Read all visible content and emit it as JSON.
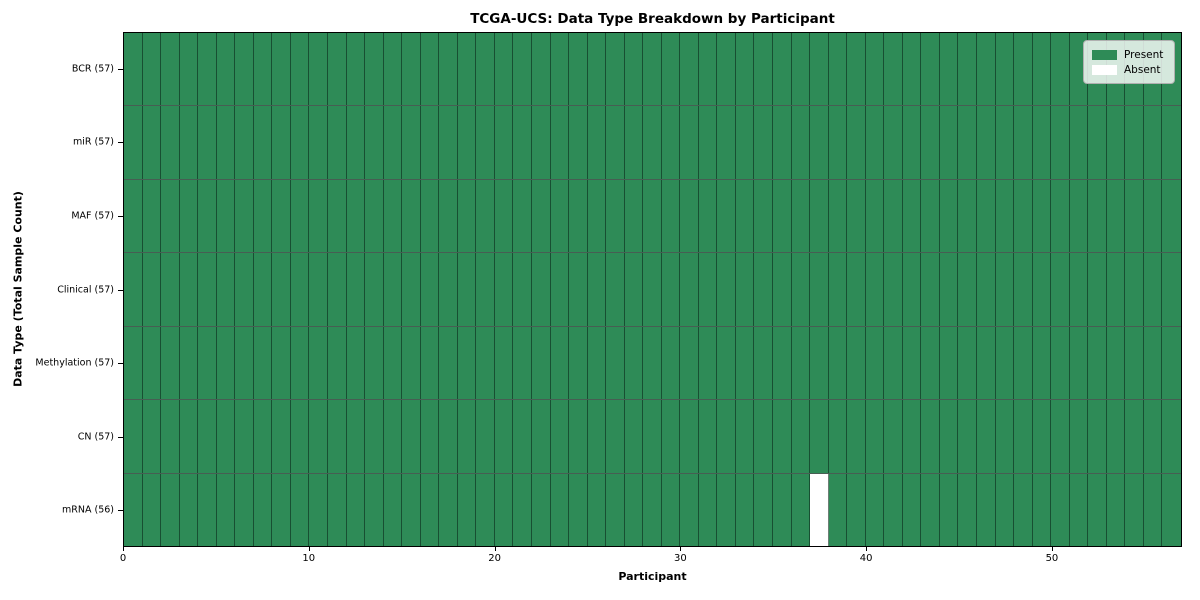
{
  "chart_data": {
    "type": "heatmap",
    "title": "TCGA-UCS: Data Type Breakdown by Participant",
    "xlabel": "Participant",
    "ylabel": "Data Type (Total Sample Count)",
    "n_participants": 57,
    "xlim": [
      0,
      57
    ],
    "x_ticks": [
      0,
      10,
      20,
      30,
      40,
      50
    ],
    "rows": [
      {
        "label": "BCR",
        "count": 57,
        "display": "BCR (57)",
        "absent_participants": []
      },
      {
        "label": "miR",
        "count": 57,
        "display": "miR (57)",
        "absent_participants": []
      },
      {
        "label": "MAF",
        "count": 57,
        "display": "MAF (57)",
        "absent_participants": []
      },
      {
        "label": "Clinical",
        "count": 57,
        "display": "Clinical (57)",
        "absent_participants": []
      },
      {
        "label": "Methylation",
        "count": 57,
        "display": "Methylation (57)",
        "absent_participants": []
      },
      {
        "label": "CN",
        "count": 57,
        "display": "CN (57)",
        "absent_participants": []
      },
      {
        "label": "mRNA",
        "count": 56,
        "display": "mRNA (56)",
        "absent_participants": [
          37
        ]
      }
    ],
    "legend": [
      {
        "label": "Present",
        "color": "#2e8b57"
      },
      {
        "label": "Absent",
        "color": "#ffffff"
      }
    ],
    "legend_position": "upper right",
    "colors": {
      "present": "#2e8b57",
      "absent": "#ffffff",
      "cell_edge": "#1f4a33",
      "axis_border": "#000000",
      "background": "#ffffff"
    },
    "grid": "cell-borders"
  }
}
